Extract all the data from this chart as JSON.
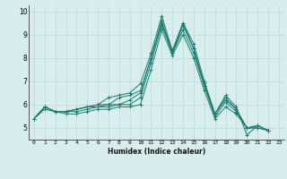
{
  "xlabel": "Humidex (Indice chaleur)",
  "ylabel": "",
  "xlim": [
    -0.5,
    23.5
  ],
  "ylim": [
    4.5,
    10.25
  ],
  "xticks": [
    0,
    1,
    2,
    3,
    4,
    5,
    6,
    7,
    8,
    9,
    10,
    11,
    12,
    13,
    14,
    15,
    16,
    17,
    18,
    19,
    20,
    21,
    22,
    23
  ],
  "yticks": [
    5,
    6,
    7,
    8,
    9,
    10
  ],
  "bg_color": "#d8eeee",
  "line_color": "#1a7a6e",
  "series": [
    [
      5.4,
      5.9,
      5.7,
      5.7,
      5.8,
      5.9,
      6.0,
      6.3,
      6.4,
      6.5,
      6.9,
      8.2,
      9.8,
      8.3,
      9.5,
      8.6,
      7.0,
      5.6,
      6.4,
      5.9,
      4.7,
      5.1,
      4.9,
      null
    ],
    [
      5.4,
      5.9,
      5.7,
      5.7,
      5.8,
      5.9,
      6.0,
      6.0,
      6.3,
      6.4,
      6.6,
      8.0,
      9.5,
      8.3,
      9.5,
      8.4,
      6.8,
      5.6,
      6.2,
      5.8,
      5.0,
      5.1,
      4.9,
      null
    ],
    [
      5.4,
      5.9,
      5.7,
      5.7,
      5.8,
      5.9,
      5.9,
      6.0,
      6.0,
      6.2,
      6.5,
      8.0,
      9.6,
      8.2,
      9.4,
      8.4,
      6.9,
      5.6,
      6.3,
      5.8,
      5.0,
      5.1,
      4.9,
      null
    ],
    [
      5.4,
      5.9,
      5.7,
      5.7,
      5.7,
      5.8,
      5.9,
      5.9,
      6.0,
      6.0,
      6.3,
      7.8,
      9.4,
      8.2,
      9.2,
      8.2,
      6.8,
      5.5,
      6.1,
      5.7,
      5.0,
      5.0,
      4.9,
      null
    ],
    [
      5.4,
      5.8,
      5.7,
      5.6,
      5.6,
      5.7,
      5.8,
      5.8,
      5.9,
      5.9,
      6.0,
      7.5,
      9.2,
      8.1,
      9.0,
      8.0,
      6.6,
      5.4,
      5.9,
      5.6,
      5.0,
      5.0,
      4.9,
      null
    ]
  ]
}
